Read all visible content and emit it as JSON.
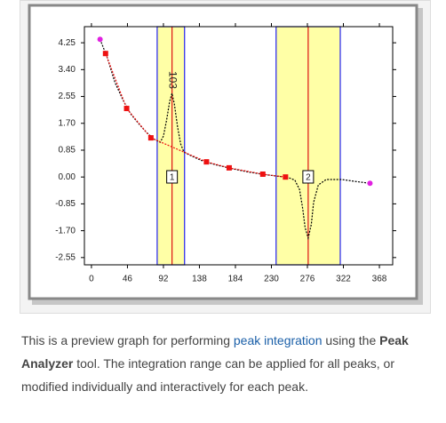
{
  "chart_data": {
    "type": "line",
    "xlim": [
      -9,
      385
    ],
    "ylim": [
      -2.78,
      4.76
    ],
    "xticks": [
      0,
      46,
      92,
      138,
      184,
      230,
      276,
      322,
      368
    ],
    "yticks": [
      {
        "value": 4.25,
        "label": "4.25"
      },
      {
        "value": 3.4,
        "label": "3.40"
      },
      {
        "value": 2.55,
        "label": "2.55"
      },
      {
        "value": 1.7,
        "label": "1.70"
      },
      {
        "value": 0.85,
        "label": "0.85"
      },
      {
        "value": 0,
        "label": "0.00"
      },
      {
        "value": -0.85,
        "label": "-0.85"
      },
      {
        "value": -1.7,
        "label": "-1.70"
      },
      {
        "value": -2.55,
        "label": "-2.55"
      }
    ],
    "series": [
      {
        "color": "#000000",
        "endpoint_color": "#e020e0",
        "markers": false,
        "x": [
          11,
          20,
          30,
          40,
          50,
          60,
          70,
          80,
          88,
          92,
          96,
          100,
          103,
          106,
          110,
          114,
          118,
          125,
          140,
          160,
          180,
          200,
          220,
          240,
          250,
          260,
          266,
          270,
          273,
          277,
          281,
          284,
          290,
          300,
          320,
          340,
          356
        ],
        "values": [
          4.36,
          3.8,
          3.0,
          2.45,
          2.0,
          1.7,
          1.42,
          1.2,
          1.1,
          1.3,
          1.8,
          2.4,
          2.65,
          2.3,
          1.6,
          1.05,
          0.8,
          0.7,
          0.53,
          0.38,
          0.26,
          0.16,
          0.08,
          0.02,
          0.0,
          -0.1,
          -0.4,
          -1.0,
          -1.6,
          -1.93,
          -1.5,
          -0.8,
          -0.25,
          -0.08,
          -0.08,
          -0.15,
          -0.2
        ]
      },
      {
        "color": "#ee1111",
        "markers": true,
        "x": [
          18,
          45,
          76,
          147,
          176,
          219,
          248
        ],
        "values": [
          3.91,
          2.17,
          1.24,
          0.48,
          0.29,
          0.09,
          0.0
        ]
      }
    ],
    "regions": [
      {
        "label": "1",
        "start": 84,
        "end": 119,
        "center": 103,
        "annotation": "103"
      },
      {
        "label": "2",
        "start": 236,
        "end": 318,
        "center": 277
      }
    ],
    "region_fill": "#ffffa6",
    "region_edge": "#2222ee",
    "center_line": "#dd1111"
  },
  "caption": {
    "parts": [
      "This is a preview graph for performing ",
      "peak integration",
      " using the ",
      "Peak Analyzer",
      " tool. The integration range can be applied for all peaks, or modified individually and interactively for each peak."
    ]
  }
}
